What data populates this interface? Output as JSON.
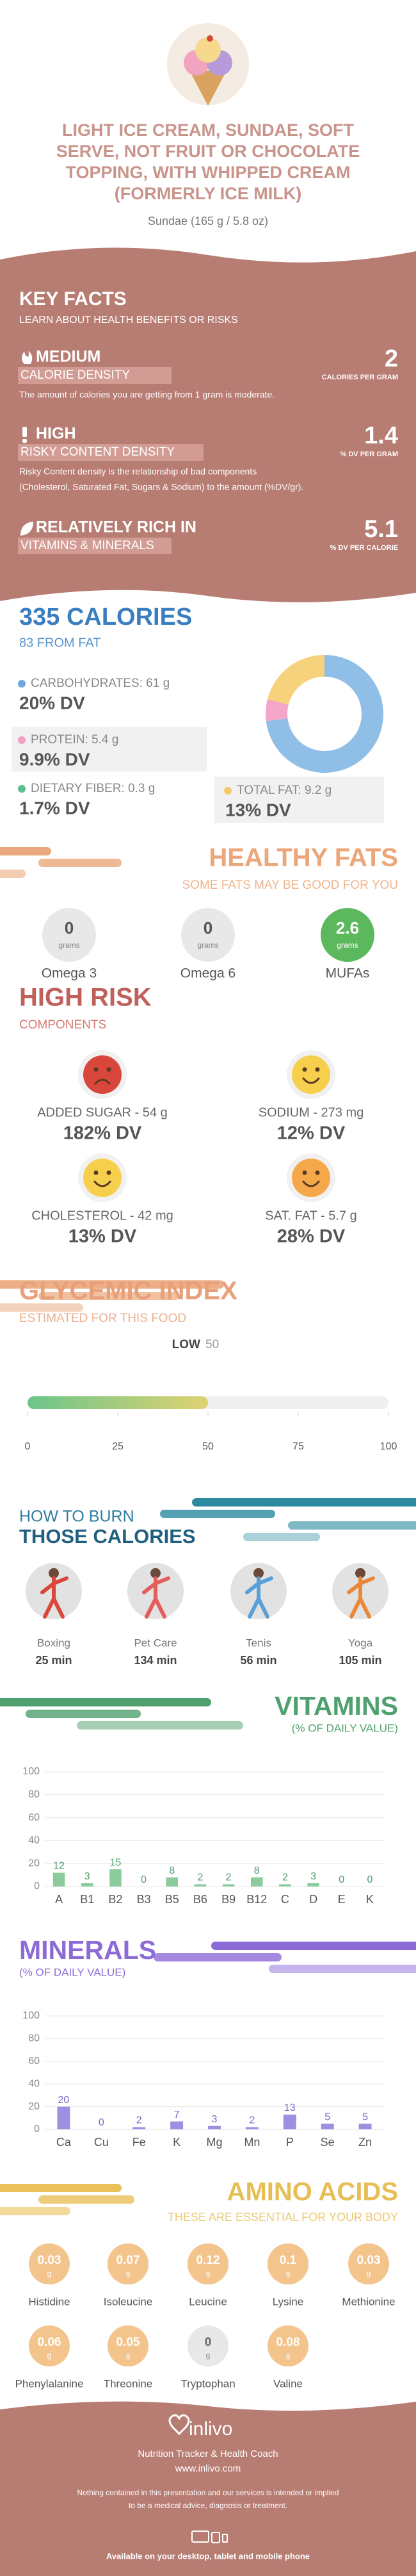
{
  "header": {
    "title": [
      "LIGHT ICE CREAM, SUNDAE, SOFT",
      "SERVE, NOT FRUIT OR CHOCOLATE",
      "TOPPING, WITH WHIPPED CREAM",
      "(FORMERLY ICE MILK)"
    ],
    "serving": "Sundae (165 g / 5.8 oz)"
  },
  "key_facts": {
    "title": "KEY FACTS",
    "subtitle": "LEARN ABOUT HEALTH BENEFITS OR RISKS",
    "items": [
      {
        "level": "MEDIUM",
        "name": "CALORIE DENSITY",
        "value": 2,
        "unit": "CALORIES PER GRAM",
        "description": [
          "The amount of calories you are getting from 1 gram is moderate."
        ]
      },
      {
        "level": "HIGH",
        "name": "RISKY CONTENT DENSITY",
        "value": 1.4,
        "unit": "% DV PER GRAM",
        "description": [
          "Risky Content density is the relationship of bad components",
          "(Cholesterol, Saturated Fat, Sugars & Sodium) to the amount (%DV/gr)."
        ]
      },
      {
        "level": "RELATIVELY RICH  IN",
        "name": "VITAMINS & MINERALS",
        "value": 5.1,
        "unit": "% DV PER CALORIE"
      }
    ]
  },
  "calories": {
    "title": "335 CALORIES",
    "from_fat": "83 FROM FAT",
    "items": [
      {
        "label": "CARBOHYDRATES: 61 g",
        "dv": "20% DV",
        "color": "#6fa8dc"
      },
      {
        "label": "PROTEIN: 5.4 g",
        "dv": "9.9% DV",
        "color": "#f29fc2"
      },
      {
        "label": "DIETARY FIBER: 0.3 g",
        "dv": "1.7% DV",
        "color": "#5cc08e"
      },
      {
        "label": "TOTAL FAT: 9.2 g",
        "dv": "13% DV",
        "color": "#f5c96a"
      }
    ]
  },
  "healthy_fats": {
    "title": "HEALTHY FATS",
    "subtitle": "SOME FATS MAY BE GOOD FOR YOU",
    "unit": "grams",
    "items": [
      {
        "name": "Omega 3",
        "value": 0
      },
      {
        "name": "Omega 6",
        "value": 0
      },
      {
        "name": "MUFAs",
        "value": 2.6
      }
    ]
  },
  "high_risk": {
    "title": "HIGH RISK",
    "subtitle": "COMPONENTS",
    "items": [
      {
        "label": "ADDED SUGAR - 54 g",
        "dv": "182% DV"
      },
      {
        "label": "SODIUM - 273 mg",
        "dv": "12% DV"
      },
      {
        "label": "CHOLESTEROL - 42 mg",
        "dv": "13% DV"
      },
      {
        "label": "SAT. FAT - 5.7 g",
        "dv": "28% DV"
      }
    ]
  },
  "burn": {
    "title": "HOW TO BURN",
    "title2": "THOSE CALORIES",
    "items": [
      {
        "name": "Boxing",
        "time": "25 min"
      },
      {
        "name": "Pet Care",
        "time": "134 min"
      },
      {
        "name": "Tenis",
        "time": "56 min"
      },
      {
        "name": "Yoga",
        "time": "105 min"
      }
    ]
  },
  "amino": {
    "title": "AMINO ACIDS",
    "subtitle": "THESE ARE ESSENTIAL FOR YOUR BODY",
    "unit": "g",
    "items": [
      {
        "name": "Histidine",
        "value": 0.03
      },
      {
        "name": "Isoleucine",
        "value": 0.07
      },
      {
        "name": "Leucine",
        "value": 0.12
      },
      {
        "name": "Lysine",
        "value": 0.1
      },
      {
        "name": "Methionine",
        "value": 0.03
      },
      {
        "name": "Phenylalanine",
        "value": 0.06
      },
      {
        "name": "Threonine",
        "value": 0.05
      },
      {
        "name": "Tryptophan",
        "value": 0
      },
      {
        "name": "Valine",
        "value": 0.08
      }
    ]
  },
  "footer": {
    "brand": "inlivo",
    "tagline": "Nutrition Tracker & Health Coach",
    "url": "www.inlivo.com",
    "disclaimer": [
      "Nothing contained in this presentation and our services is intended or implied",
      "to be a medical advice, diagnosis or treatment."
    ],
    "available": "Available on your desktop, tablet and mobile phone"
  },
  "chart_data": [
    {
      "type": "pie",
      "values": [
        73,
        6,
        21
      ],
      "colors": [
        "#8fbfe6",
        "#f4a6c9",
        "#f7d27c"
      ]
    },
    {
      "type": "gauge",
      "title": "GLYCEMIC INDEX",
      "subtitle": "ESTIMATED FOR THIS FOOD",
      "label": "LOW",
      "value": 50,
      "xlim": [
        0,
        100
      ],
      "xticks": [
        0,
        25,
        50,
        75,
        100
      ],
      "color": "#8fd08a"
    },
    {
      "type": "bar",
      "title": "VITAMINS",
      "subtitle": "(% OF DAILY VALUE)",
      "categories": [
        "A",
        "B1",
        "B2",
        "B3",
        "B5",
        "B6",
        "B9",
        "B12",
        "C",
        "D",
        "E",
        "K"
      ],
      "values": [
        12,
        3,
        15,
        0,
        8,
        2,
        2,
        8,
        2,
        3,
        0,
        0
      ],
      "color": "#8ccc9c",
      "ylim": [
        0,
        100
      ],
      "yticks": [
        0,
        20,
        40,
        60,
        80,
        100
      ],
      "grid": true
    },
    {
      "type": "bar",
      "title": "MINERALS",
      "subtitle": "(% OF DAILY VALUE)",
      "categories": [
        "Ca",
        "Cu",
        "Fe",
        "K",
        "Mg",
        "Mn",
        "P",
        "Se",
        "Zn"
      ],
      "values": [
        20,
        0,
        2,
        7,
        3,
        2,
        13,
        5,
        5
      ],
      "color": "#9c90e0",
      "ylim": [
        0,
        100
      ],
      "yticks": [
        0,
        20,
        40,
        60,
        80,
        100
      ],
      "grid": true
    }
  ]
}
